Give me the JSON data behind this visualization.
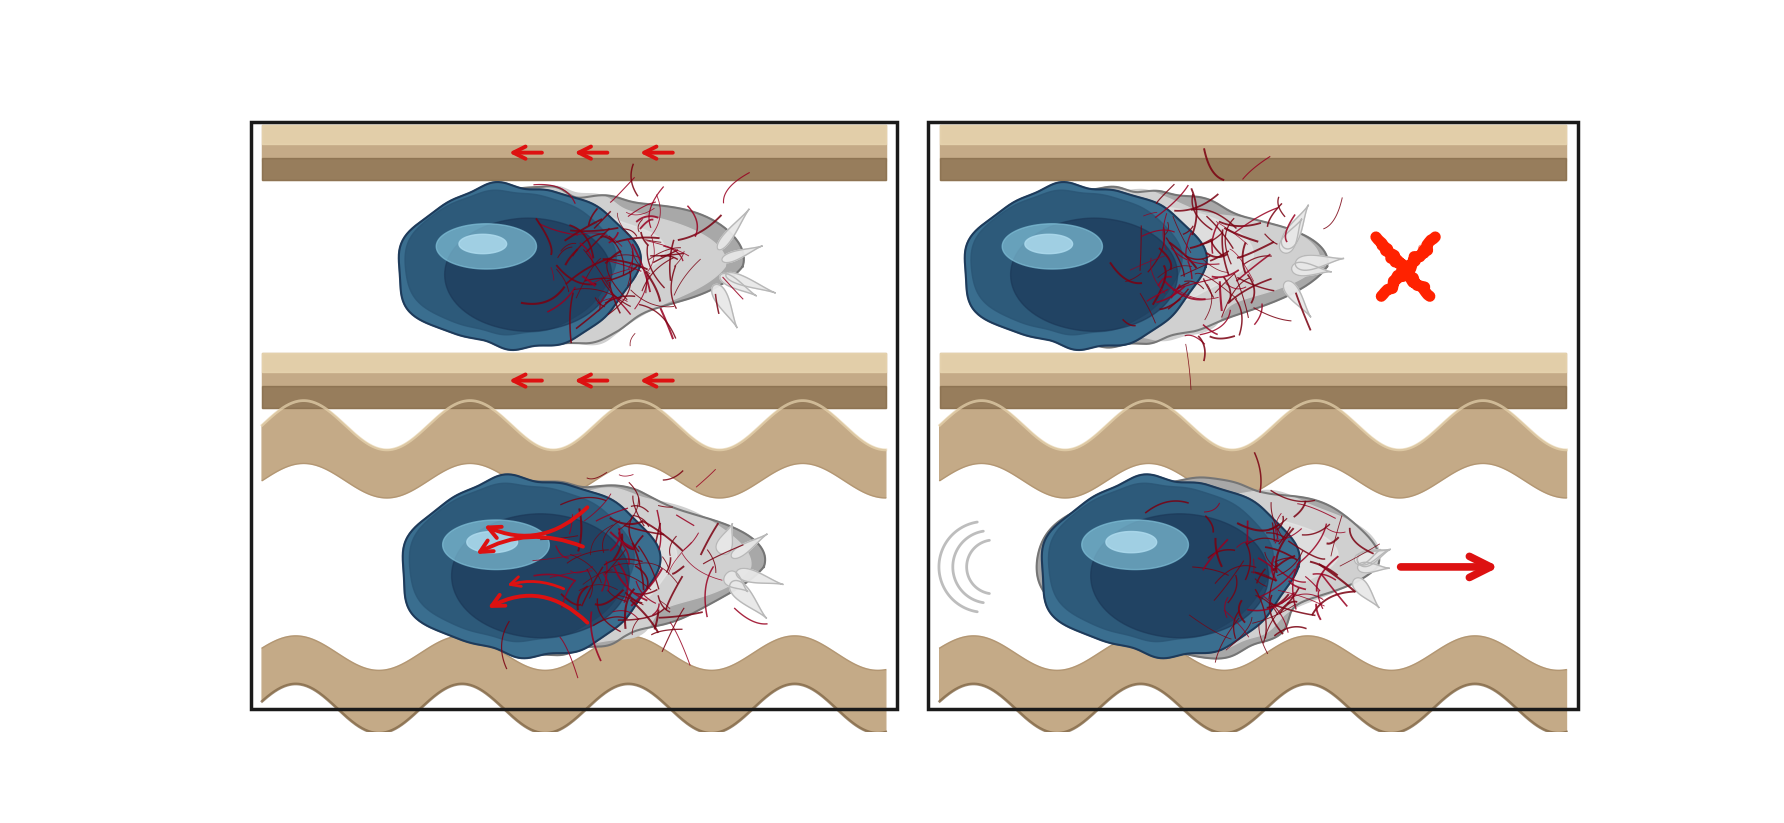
{
  "background_color": "#ffffff",
  "border_color": "#1a1a1a",
  "channel_color_main": "#c4aa87",
  "channel_color_light": "#e8d5b0",
  "channel_color_dark": "#9a7a55",
  "channel_color_shadow": "#7a6040",
  "cytoplasm_outer": "#a8a8a8",
  "cytoplasm_inner": "#d0d0d0",
  "cytoplasm_sheen": "#e8e8e8",
  "nucleus_base": "#3a6e8f",
  "nucleus_mid": "#2a5575",
  "nucleus_dark": "#1a3555",
  "nucleus_highlight": "#80c0d8",
  "nucleus_highlight2": "#b0ddf0",
  "actin_color": "#7a0010",
  "actin_color2": "#990020",
  "pseudopod_color": "#e8e8e8",
  "pseudopod_edge": "#b8b8b8",
  "arrow_red": "#dd1111",
  "arrow_red_dark": "#aa0000",
  "x_red": "#ff2200",
  "motion_gray": "#888888",
  "fig_width": 17.84,
  "fig_height": 8.23
}
